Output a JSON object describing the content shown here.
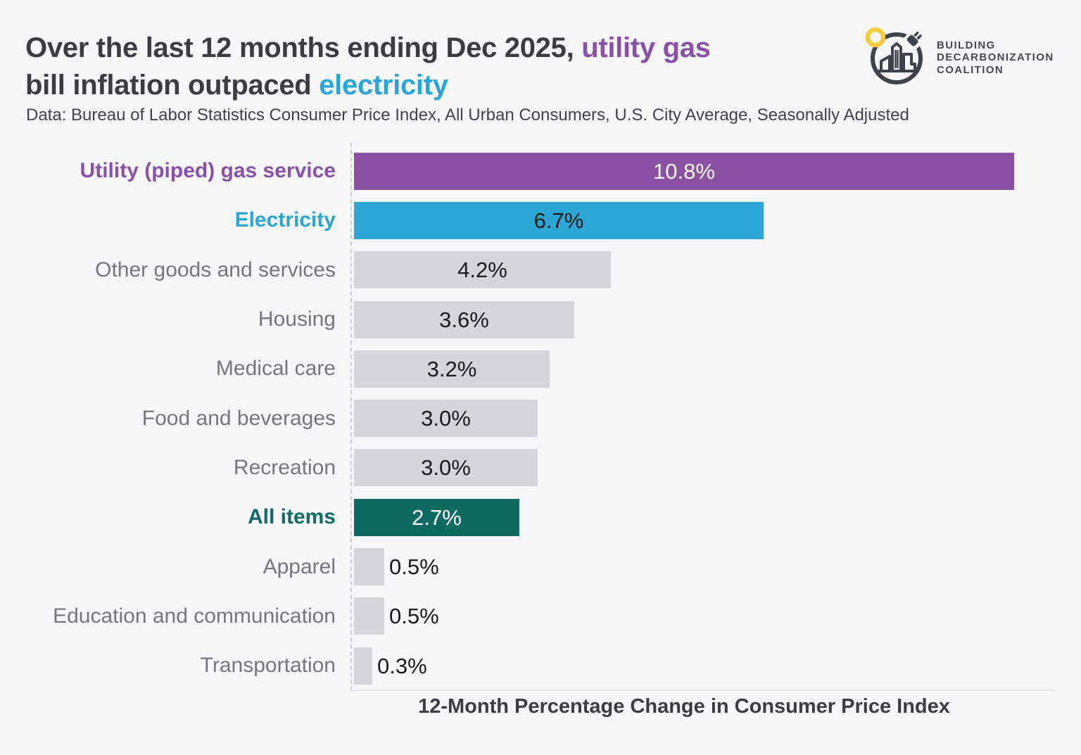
{
  "header": {
    "title_line1_text": "Over the last 12 months ending Dec 2025, ",
    "title_line1_highlight": "utility gas",
    "title_line2_text": "bill inflation outpaced ",
    "title_line2_highlight": "electricity",
    "subtitle": "Data: Bureau of Labor Statistics Consumer Price Index, All Urban Consumers, U.S. City Average, Seasonally Adjusted"
  },
  "logo": {
    "icon": "building-decarbonization-coalition-logo",
    "line1": "BUILDING",
    "line2": "DECARBONIZATION",
    "line3": "COALITION"
  },
  "colors": {
    "background": "#f7f7f9",
    "purple": "#8a51a3",
    "blue": "#2ca6d5",
    "teal": "#0f6a64",
    "gray_bar": "#d5d4d9",
    "text_dark": "#3d3b42",
    "label_gray": "#77757c",
    "value_dark": "#1a191c",
    "value_light": "#ffffff",
    "logo_dark": "#3e434b",
    "logo_yellow": "#f6ce3d"
  },
  "chart_data": {
    "type": "bar",
    "orientation": "horizontal",
    "xlabel": "12-Month Percentage Change in Consumer Price Index",
    "xlim": [
      0,
      10.8
    ],
    "grid": false,
    "legend": "none",
    "categories": [
      "Utility (piped) gas service",
      "Electricity",
      "Other goods and services",
      "Housing",
      "Medical care",
      "Food and beverages",
      "Recreation",
      "All items",
      "Apparel",
      "Education and communication",
      "Transportation"
    ],
    "values": [
      10.8,
      6.7,
      4.2,
      3.6,
      3.2,
      3.0,
      3.0,
      2.7,
      0.5,
      0.5,
      0.3
    ],
    "bars": [
      {
        "label": "Utility (piped) gas service",
        "value": 10.8,
        "display": "10.8%",
        "color": "#8a51a3",
        "label_color": "#8a4fa8",
        "label_bold": true,
        "value_color": "#ffffff",
        "value_inside": true
      },
      {
        "label": "Electricity",
        "value": 6.7,
        "display": "6.7%",
        "color": "#2ca6d5",
        "label_color": "#2aa5d8",
        "label_bold": true,
        "value_color": "#1a191c",
        "value_inside": true
      },
      {
        "label": "Other goods and services",
        "value": 4.2,
        "display": "4.2%",
        "color": "#d5d4d9",
        "label_color": "#77757c",
        "label_bold": false,
        "value_color": "#1a191c",
        "value_inside": true
      },
      {
        "label": "Housing",
        "value": 3.6,
        "display": "3.6%",
        "color": "#d5d4d9",
        "label_color": "#77757c",
        "label_bold": false,
        "value_color": "#1a191c",
        "value_inside": true
      },
      {
        "label": "Medical care",
        "value": 3.2,
        "display": "3.2%",
        "color": "#d5d4d9",
        "label_color": "#77757c",
        "label_bold": false,
        "value_color": "#1a191c",
        "value_inside": true
      },
      {
        "label": "Food and beverages",
        "value": 3.0,
        "display": "3.0%",
        "color": "#d5d4d9",
        "label_color": "#77757c",
        "label_bold": false,
        "value_color": "#1a191c",
        "value_inside": true
      },
      {
        "label": "Recreation",
        "value": 3.0,
        "display": "3.0%",
        "color": "#d5d4d9",
        "label_color": "#77757c",
        "label_bold": false,
        "value_color": "#1a191c",
        "value_inside": true
      },
      {
        "label": "All items",
        "value": 2.7,
        "display": "2.7%",
        "color": "#0f6a64",
        "label_color": "#0f6a64",
        "label_bold": true,
        "value_color": "#ffffff",
        "value_inside": true
      },
      {
        "label": "Apparel",
        "value": 0.5,
        "display": "0.5%",
        "color": "#d5d4d9",
        "label_color": "#77757c",
        "label_bold": false,
        "value_color": "#1a191c",
        "value_inside": false
      },
      {
        "label": "Education and communication",
        "value": 0.5,
        "display": "0.5%",
        "color": "#d5d4d9",
        "label_color": "#77757c",
        "label_bold": false,
        "value_color": "#1a191c",
        "value_inside": false
      },
      {
        "label": "Transportation",
        "value": 0.3,
        "display": "0.3%",
        "color": "#d5d4d9",
        "label_color": "#77757c",
        "label_bold": false,
        "value_color": "#1a191c",
        "value_inside": false
      }
    ]
  }
}
